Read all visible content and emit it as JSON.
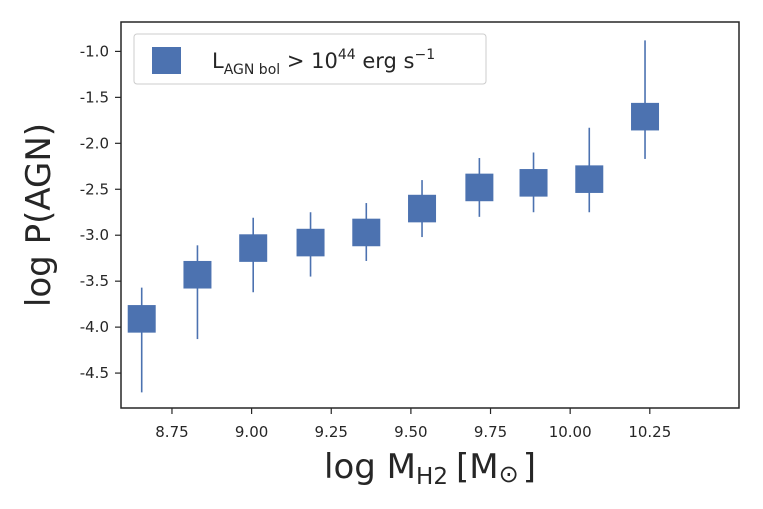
{
  "chart_data": {
    "type": "scatter",
    "title": "",
    "xlabel_main": "log M",
    "xlabel_sub": "H2",
    "xlabel_unit": "[M",
    "xlabel_unit_symbol": "⊙",
    "xlabel_close": "]",
    "ylabel": "log P(AGN)",
    "xlim": [
      8.59,
      10.53
    ],
    "ylim": [
      -4.88,
      -0.68
    ],
    "xticks": [
      8.75,
      9.0,
      9.25,
      9.5,
      9.75,
      10.0,
      10.25
    ],
    "xtick_labels": [
      "8.75",
      "9.00",
      "9.25",
      "9.50",
      "9.75",
      "10.00",
      "10.25"
    ],
    "yticks": [
      -1.0,
      -1.5,
      -2.0,
      -2.5,
      -3.0,
      -3.5,
      -4.0,
      -4.5
    ],
    "ytick_labels": [
      "-1.0",
      "-1.5",
      "-2.0",
      "-2.5",
      "-3.0",
      "-3.5",
      "-4.0",
      "-4.5"
    ],
    "grid": false,
    "legend": {
      "position": "top-left",
      "label_L": "L",
      "label_sub": "AGN bol",
      "label_gt": " > 10",
      "label_sup": "44",
      "label_unit": " erg s",
      "label_unit_sup": "−1"
    },
    "color": "#4c72b0",
    "series": [
      {
        "name": "L_AGN bol > 10^44 erg s^-1",
        "points": [
          {
            "x": 8.655,
            "low": -4.06,
            "high": -3.76,
            "err_low": -4.71,
            "err_high": -3.57
          },
          {
            "x": 8.83,
            "low": -3.58,
            "high": -3.28,
            "err_low": -4.13,
            "err_high": -3.11
          },
          {
            "x": 9.005,
            "low": -3.29,
            "high": -2.99,
            "err_low": -3.62,
            "err_high": -2.81
          },
          {
            "x": 9.185,
            "low": -3.23,
            "high": -2.93,
            "err_low": -3.45,
            "err_high": -2.75
          },
          {
            "x": 9.36,
            "low": -3.12,
            "high": -2.82,
            "err_low": -3.28,
            "err_high": -2.65
          },
          {
            "x": 9.535,
            "low": -2.86,
            "high": -2.56,
            "err_low": -3.02,
            "err_high": -2.4
          },
          {
            "x": 9.715,
            "low": -2.63,
            "high": -2.33,
            "err_low": -2.8,
            "err_high": -2.16
          },
          {
            "x": 9.885,
            "low": -2.58,
            "high": -2.28,
            "err_low": -2.75,
            "err_high": -2.1
          },
          {
            "x": 10.06,
            "low": -2.54,
            "high": -2.24,
            "err_low": -2.75,
            "err_high": -1.83
          },
          {
            "x": 10.235,
            "low": -1.86,
            "high": -1.56,
            "err_low": -2.17,
            "err_high": -0.88
          }
        ]
      }
    ]
  }
}
